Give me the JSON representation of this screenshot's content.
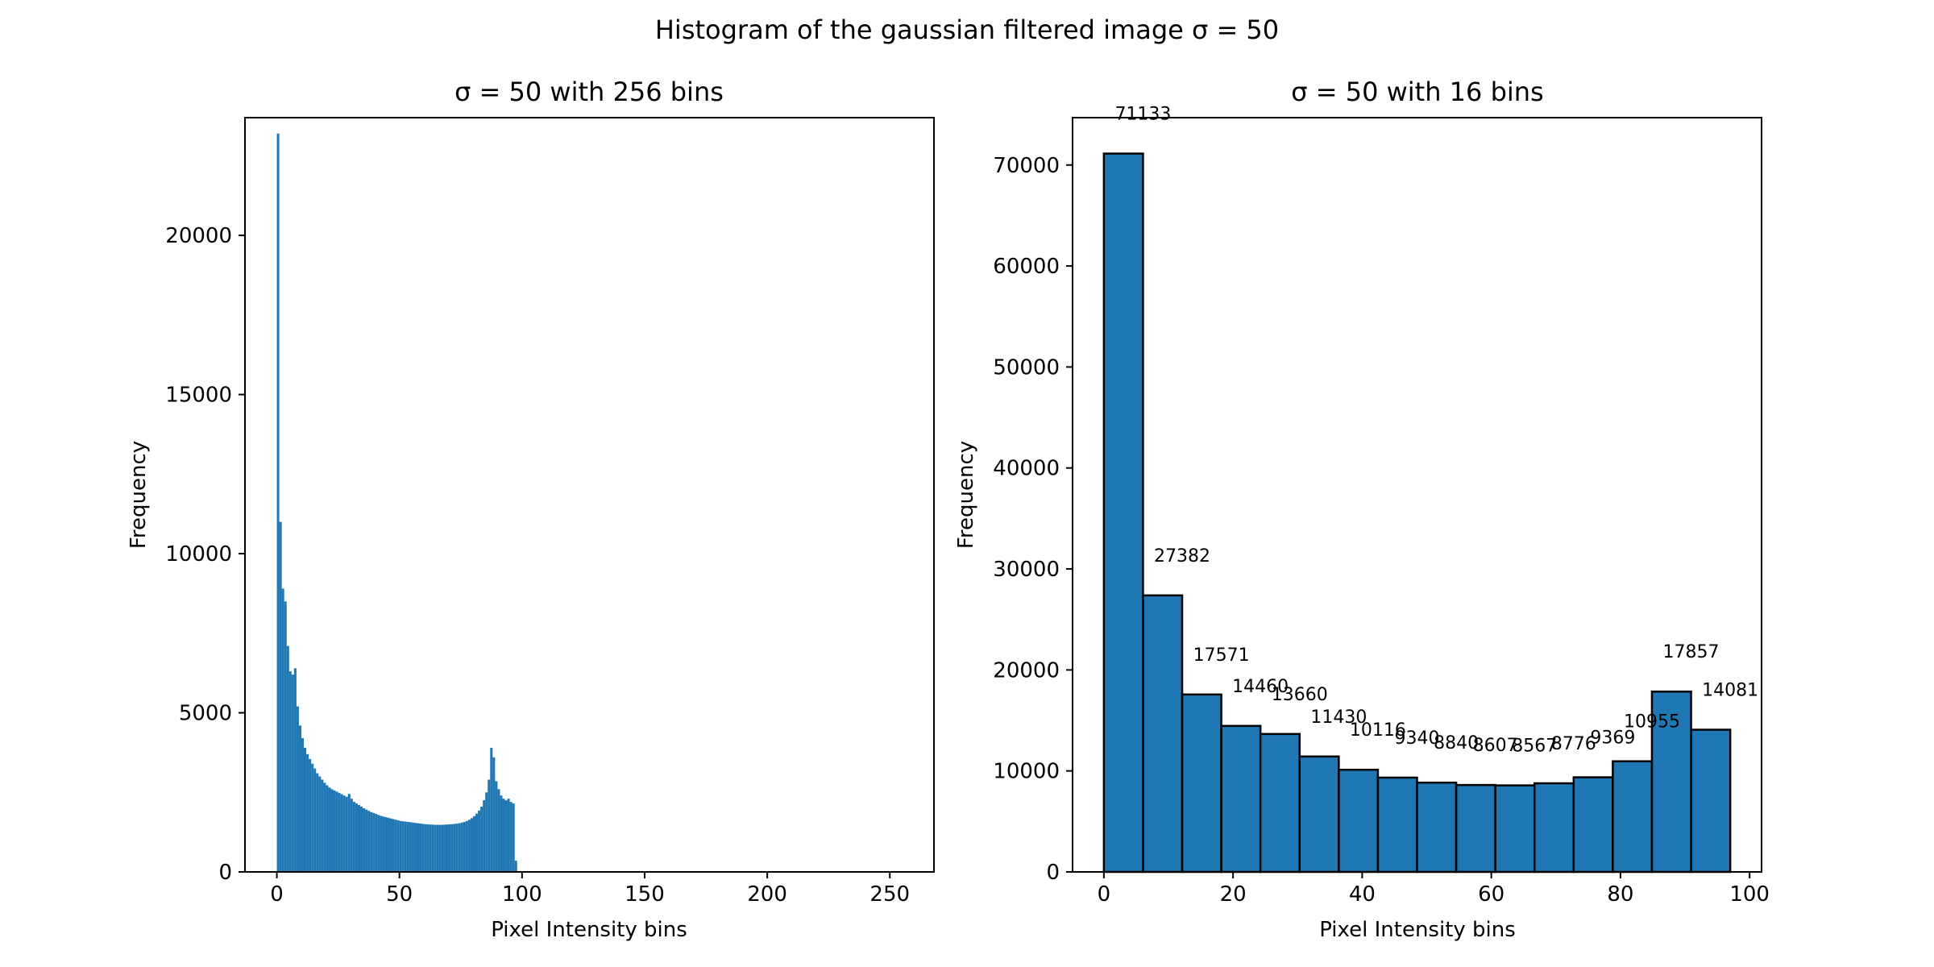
{
  "figure": {
    "suptitle": "Histogram of the gaussian filtered image σ = 50"
  },
  "chart_data": [
    {
      "type": "bar",
      "title": "σ = 50 with 256 bins",
      "xlabel": "Pixel Intensity bins",
      "ylabel": "Frequency",
      "xlim": [
        -13,
        268
      ],
      "ylim": [
        0,
        23700
      ],
      "xticks": [
        0,
        50,
        100,
        150,
        200,
        250
      ],
      "yticks": [
        0,
        5000,
        10000,
        15000,
        20000
      ],
      "grid": false,
      "bar_color": "#1f77b4",
      "bin_start": 0,
      "bin_width": 1,
      "values": [
        23200,
        11000,
        8900,
        8500,
        7100,
        6300,
        6200,
        6400,
        5200,
        4600,
        4200,
        3900,
        3700,
        3550,
        3400,
        3250,
        3100,
        3000,
        2900,
        2800,
        2720,
        2650,
        2600,
        2560,
        2520,
        2480,
        2440,
        2400,
        2360,
        2450,
        2300,
        2200,
        2150,
        2100,
        2050,
        2000,
        1960,
        1920,
        1880,
        1850,
        1820,
        1790,
        1760,
        1740,
        1720,
        1700,
        1680,
        1660,
        1640,
        1620,
        1600,
        1590,
        1580,
        1570,
        1560,
        1550,
        1540,
        1530,
        1520,
        1510,
        1500,
        1495,
        1490,
        1485,
        1480,
        1480,
        1480,
        1480,
        1485,
        1490,
        1495,
        1500,
        1510,
        1520,
        1530,
        1550,
        1570,
        1600,
        1640,
        1690,
        1750,
        1830,
        1930,
        2050,
        2250,
        2500,
        2900,
        3900,
        3600,
        2850,
        2600,
        2400,
        2300,
        2250,
        2300,
        2200,
        2150,
        350
      ]
    },
    {
      "type": "bar",
      "title": "σ = 50 with 16 bins",
      "xlabel": "Pixel Intensity bins",
      "ylabel": "Frequency",
      "xlim": [
        -4.85,
        101.85
      ],
      "ylim": [
        0,
        74690
      ],
      "xticks": [
        0,
        20,
        40,
        60,
        80,
        100
      ],
      "yticks": [
        0,
        10000,
        20000,
        30000,
        40000,
        50000,
        60000,
        70000
      ],
      "grid": false,
      "bar_color": "#1f77b4",
      "edge_color": "#000000",
      "bin_start": 0,
      "bin_width": 6.0625,
      "values": [
        71133,
        27382,
        17571,
        14460,
        13660,
        11430,
        10116,
        9340,
        8840,
        8607,
        8567,
        8776,
        9369,
        10955,
        17857,
        14081
      ],
      "data_labels": [
        "71133",
        "27382",
        "17571",
        "14460",
        "13660",
        "11430",
        "10116",
        "9340",
        "8840",
        "8607",
        "8567",
        "8776",
        "9369",
        "10955",
        "17857",
        "14081"
      ]
    }
  ]
}
